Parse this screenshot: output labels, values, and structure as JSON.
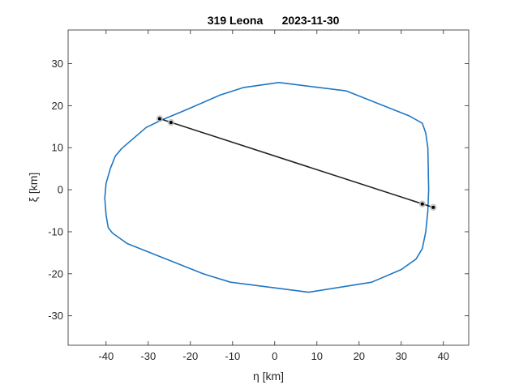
{
  "colors": {
    "outline": "#1f77c4",
    "chord": "#222222",
    "marker": "#000000",
    "marker_halo": "#bbbbbb",
    "axes": "#262626"
  },
  "chart_data": {
    "type": "line",
    "title_name": "319 Leona",
    "title_date": "2023-11-30",
    "xlabel": "η [km]",
    "ylabel": "ξ [km]",
    "xlim": [
      -49,
      46
    ],
    "ylim": [
      -37,
      38
    ],
    "xticks": [
      -40,
      -30,
      -20,
      -10,
      0,
      10,
      20,
      30,
      40
    ],
    "yticks": [
      -30,
      -20,
      -10,
      0,
      10,
      20,
      30
    ],
    "grid": false,
    "series": [
      {
        "role": "profile",
        "points": [
          [
            1,
            25.5
          ],
          [
            17,
            23.5
          ],
          [
            32,
            17.5
          ],
          [
            35,
            15.8
          ],
          [
            35.8,
            13.5
          ],
          [
            36.3,
            10
          ],
          [
            36.5,
            0
          ],
          [
            36.3,
            -5
          ],
          [
            35.8,
            -10
          ],
          [
            35,
            -14
          ],
          [
            33.5,
            -16.5
          ],
          [
            30,
            -19
          ],
          [
            23,
            -22
          ],
          [
            8,
            -24.4
          ],
          [
            -10.5,
            -22
          ],
          [
            -17,
            -20
          ],
          [
            -35,
            -12.8
          ],
          [
            -38.5,
            -10.3
          ],
          [
            -39.5,
            -9
          ],
          [
            -40,
            -6
          ],
          [
            -40.3,
            -2
          ],
          [
            -40,
            1.5
          ],
          [
            -39,
            5
          ],
          [
            -37.8,
            8
          ],
          [
            -36.3,
            9.8
          ],
          [
            -30.5,
            14.8
          ],
          [
            -27,
            16.5
          ],
          [
            -21,
            19
          ],
          [
            -13,
            22.5
          ],
          [
            -7.5,
            24.3
          ],
          [
            1,
            25.5
          ]
        ]
      },
      {
        "role": "chord",
        "points": [
          [
            -27.3,
            16.9
          ],
          [
            37.6,
            -4.2
          ]
        ]
      }
    ],
    "markers": [
      [
        -27.3,
        16.9
      ],
      [
        -24.6,
        16.0
      ],
      [
        35.0,
        -3.4
      ],
      [
        37.6,
        -4.2
      ]
    ]
  }
}
